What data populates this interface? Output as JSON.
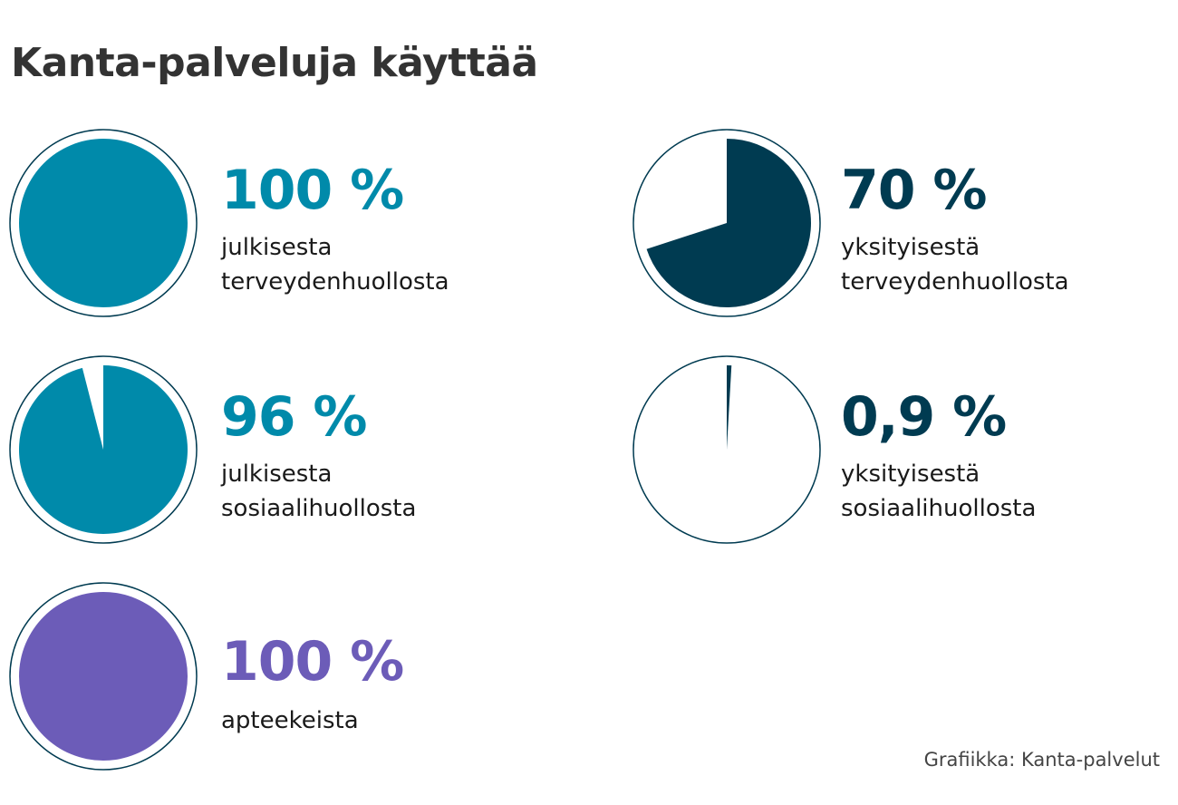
{
  "title": "Kanta-palveluja käyttää",
  "chart_data": [
    {
      "type": "pie",
      "value_percent": 100,
      "value_label": "100 %",
      "description": [
        "julkisesta",
        "terveydenhuollosta"
      ],
      "color": "#008aaa"
    },
    {
      "type": "pie",
      "value_percent": 70,
      "value_label": "70 %",
      "description": [
        "yksityisestä",
        "terveydenhuollosta"
      ],
      "color": "#003b51"
    },
    {
      "type": "pie",
      "value_percent": 96,
      "value_label": "96 %",
      "description": [
        "julkisesta",
        "sosiaalihuollosta"
      ],
      "color": "#008aaa"
    },
    {
      "type": "pie",
      "value_percent": 0.9,
      "value_label": "0,9 %",
      "description": [
        "yksityisestä",
        "sosiaalihuollosta"
      ],
      "color": "#003b51"
    },
    {
      "type": "pie",
      "value_percent": 100,
      "value_label": "100 %",
      "description": [
        "apteekeista"
      ],
      "color": "#6c5cb8"
    }
  ],
  "colors": {
    "ring": "#003b51",
    "title": "#333333"
  },
  "source": "Grafiikka: Kanta-palvelut"
}
